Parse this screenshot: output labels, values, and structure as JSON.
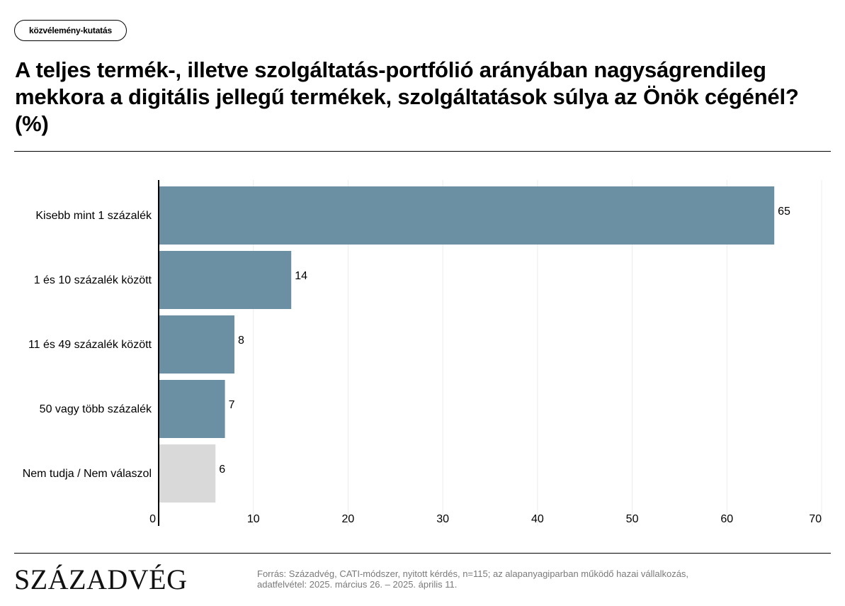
{
  "header": {
    "tag": "közvélemény-kutatás",
    "title": "A teljes termék-, illetve szolgáltatás-portfólió arányában nagyságrendileg mekkora a digitális jellegű termékek, szolgáltatások súlya az Önök cégénél? (%)"
  },
  "colors": {
    "bar": "#6b90a3",
    "bar_muted": "#d9d9d9",
    "grid": "#ececec",
    "axis": "#000000"
  },
  "chart_data": {
    "type": "bar",
    "orientation": "horizontal",
    "categories": [
      "Kisebb mint 1 százalék",
      "1 és 10 százalék között",
      "11 és 49 százalék között",
      "50 vagy több százalék",
      "Nem tudja / Nem válaszol"
    ],
    "values": [
      65,
      14,
      8,
      7,
      6
    ],
    "value_labels": [
      "65",
      "14",
      "8",
      "7",
      "6"
    ],
    "highlight": [
      true,
      true,
      true,
      true,
      false
    ],
    "xlim": [
      0,
      70
    ],
    "xticks": [
      0,
      10,
      20,
      30,
      40,
      50,
      60,
      70
    ],
    "grid": true,
    "legend": "none"
  },
  "footer": {
    "logo": "SZÁZADVÉG",
    "source_line1": "Forrás: Századvég, CATI-módszer, nyitott kérdés, n=115; az alapanyagiparban működő hazai vállalkozás,",
    "source_line2": "adatfelvétel: 2025. március 26. – 2025. április 11."
  }
}
